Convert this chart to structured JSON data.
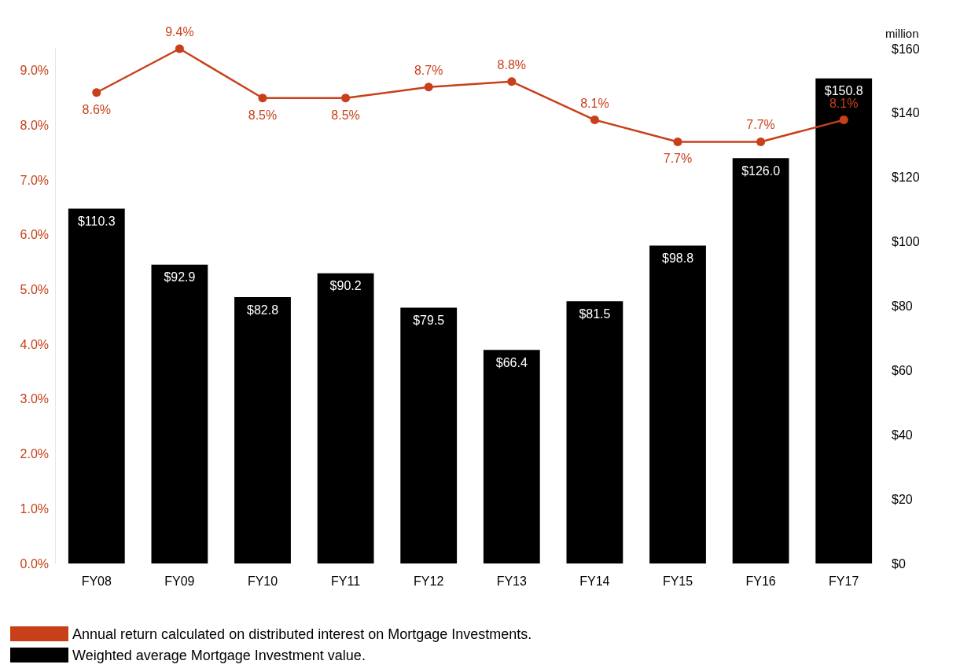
{
  "chart_data": {
    "type": "bar",
    "categories": [
      "FY08",
      "FY09",
      "FY10",
      "FY11",
      "FY12",
      "FY13",
      "FY14",
      "FY15",
      "FY16",
      "FY17"
    ],
    "y2label": "million",
    "series": [
      {
        "name": "Weighted average Mortgage Investment value.",
        "axis": "y2",
        "color": "#000000",
        "values": [
          110.3,
          92.9,
          82.8,
          90.2,
          79.5,
          66.4,
          81.5,
          98.8,
          126.0,
          150.8
        ],
        "value_labels": [
          "$110.3",
          "$92.9",
          "$82.8",
          "$90.2",
          "$79.5",
          "$66.4",
          "$81.5",
          "$98.8",
          "$126.0",
          "$150.8"
        ]
      },
      {
        "name": "Annual return calculated on distributed interest on Mortgage Investments.",
        "type": "line",
        "color": "#c8401a",
        "marker": "circle",
        "values": [
          8.6,
          9.4,
          8.5,
          8.5,
          8.7,
          8.8,
          8.1,
          7.7,
          7.7,
          8.1
        ],
        "value_labels": [
          "8.6%",
          "9.4%",
          "8.5%",
          "8.5%",
          "8.7%",
          "8.8%",
          "8.1%",
          "7.7%",
          "7.7%",
          "8.1%"
        ]
      }
    ],
    "ylim": [
      0,
      9.4
    ],
    "yticks": [
      {
        "value": 0,
        "label": "0.0%"
      },
      {
        "value": 1,
        "label": "1.0%"
      },
      {
        "value": 2,
        "label": "2.0%"
      },
      {
        "value": 3,
        "label": "3.0%"
      },
      {
        "value": 4,
        "label": "4.0%"
      },
      {
        "value": 5,
        "label": "5.0%"
      },
      {
        "value": 6,
        "label": "6.0%"
      },
      {
        "value": 7,
        "label": "7.0%"
      },
      {
        "value": 8,
        "label": "8.0%"
      },
      {
        "value": 9,
        "label": "9.0%"
      }
    ],
    "y2lim": [
      0,
      160
    ],
    "y2ticks": [
      {
        "value": 0,
        "label": "$0"
      },
      {
        "value": 20,
        "label": "$20"
      },
      {
        "value": 40,
        "label": "$40"
      },
      {
        "value": 60,
        "label": "$60"
      },
      {
        "value": 80,
        "label": "$80"
      },
      {
        "value": 100,
        "label": "$100"
      },
      {
        "value": 120,
        "label": "$120"
      },
      {
        "value": 140,
        "label": "$140"
      },
      {
        "value": 160,
        "label": "$160"
      }
    ],
    "grid": false,
    "legend": "bottom left"
  }
}
